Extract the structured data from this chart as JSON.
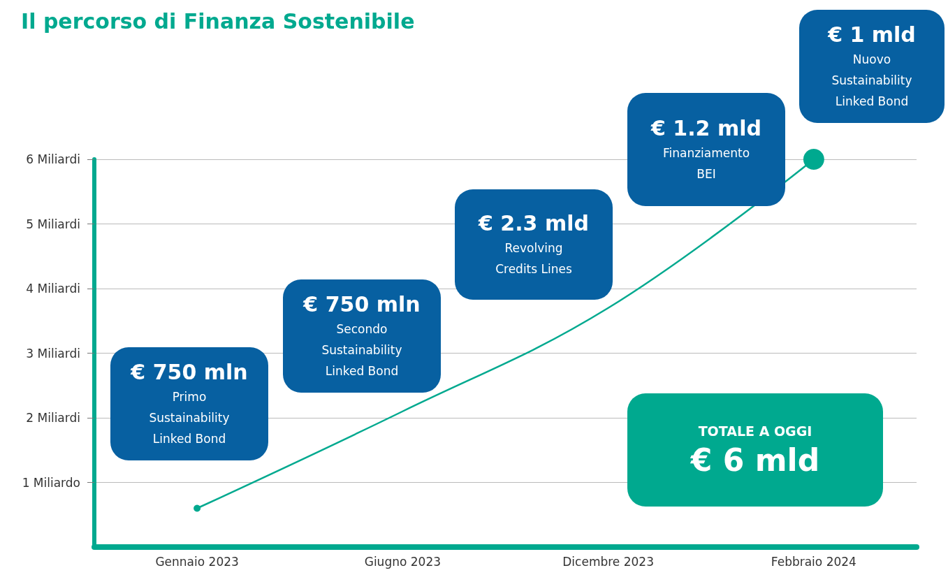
{
  "chart_data": {
    "type": "line",
    "title": "Il percorso di Finanza Sostenibile",
    "categories": [
      "Gennaio 2023",
      "Giugno 2023",
      "Dicembre 2023",
      "Febbraio 2024"
    ],
    "series": [
      {
        "color": "#00a98f",
        "values": [
          0.6,
          2.1,
          3.7,
          6
        ]
      }
    ],
    "ylim": [
      0,
      6
    ],
    "yticks": [
      {
        "value": 1,
        "label": "1 Miliardo"
      },
      {
        "value": 2,
        "label": "2 Miliardi"
      },
      {
        "value": 3,
        "label": "3 Miliardi"
      },
      {
        "value": 4,
        "label": "4 Miliardi"
      },
      {
        "value": 5,
        "label": "5 Miliardi"
      },
      {
        "value": 6,
        "label": "6 Miliardi"
      }
    ],
    "grid": "y",
    "marker": "circle",
    "line_style": "solid",
    "annotations": [
      "€ 750 mln\nPrimo\nSustainability\nLinked Bond",
      "€ 750 mln\nSecondo\nSustainability\nLinked Bond",
      "€ 2.3 mld\nRevolving\nCredits Lines",
      "€ 1.2 mld\nFinanziamento\nBEI",
      "€ 1 mld\nNuovo\nSustainability\nLinked Bond",
      "TOTALE A OGGI\n€ 6 mld"
    ]
  }
}
